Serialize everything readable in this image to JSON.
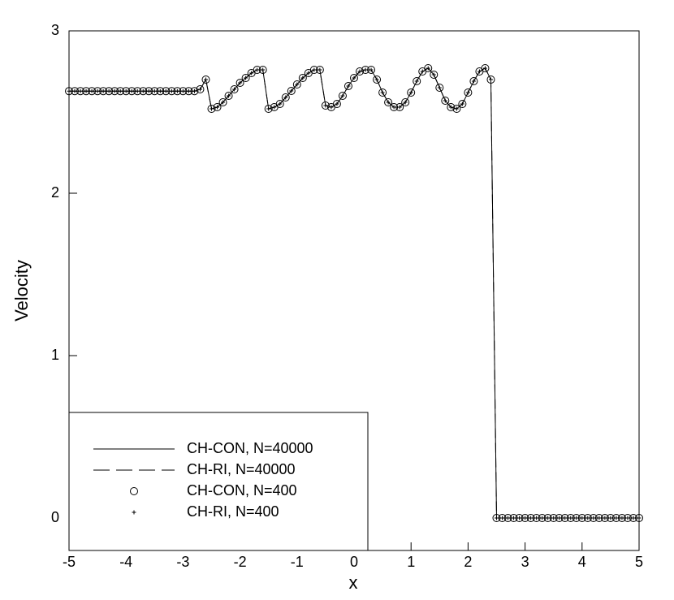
{
  "chart_data": {
    "type": "line",
    "xlabel": "x",
    "ylabel": "Velocity",
    "xlim": [
      -5,
      5
    ],
    "ylim": [
      -0.2,
      3
    ],
    "xticks": [
      -5,
      -4,
      -3,
      -2,
      -1,
      0,
      1,
      2,
      3,
      4,
      5
    ],
    "yticks": [
      0,
      1,
      2,
      3
    ],
    "legend": "lower left",
    "x": [
      -5,
      -4.9,
      -4.8,
      -4.7,
      -4.6,
      -4.5,
      -4.4,
      -4.3,
      -4.2,
      -4.1,
      -4,
      -3.9,
      -3.8,
      -3.7,
      -3.6,
      -3.5,
      -3.4,
      -3.3,
      -3.2,
      -3.1,
      -3,
      -2.9,
      -2.8,
      -2.7,
      -2.6,
      -2.5,
      -2.4,
      -2.3,
      -2.2,
      -2.1,
      -2,
      -1.9,
      -1.8,
      -1.7,
      -1.6,
      -1.5,
      -1.4,
      -1.3,
      -1.2,
      -1.1,
      -1,
      -0.9,
      -0.8,
      -0.7,
      -0.6,
      -0.5,
      -0.4,
      -0.3,
      -0.2,
      -0.1,
      0,
      0.1,
      0.2,
      0.3,
      0.4,
      0.5,
      0.6,
      0.7,
      0.8,
      0.9,
      1,
      1.1,
      1.2,
      1.3,
      1.4,
      1.5,
      1.6,
      1.7,
      1.8,
      1.9,
      2,
      2.1,
      2.2,
      2.3,
      2.4,
      2.5,
      2.6,
      2.7,
      2.8,
      2.9,
      3,
      3.1,
      3.2,
      3.3,
      3.4,
      3.5,
      3.6,
      3.7,
      3.8,
      3.9,
      4,
      4.1,
      4.2,
      4.3,
      4.4,
      4.5,
      4.6,
      4.7,
      4.8,
      4.9,
      5
    ],
    "series": [
      {
        "name": "CH-CON, N=40000",
        "color": "#000000",
        "style": "solid",
        "values": [
          2.629,
          2.629,
          2.629,
          2.629,
          2.629,
          2.629,
          2.629,
          2.629,
          2.629,
          2.629,
          2.629,
          2.629,
          2.629,
          2.629,
          2.629,
          2.629,
          2.629,
          2.629,
          2.629,
          2.629,
          2.629,
          2.629,
          2.629,
          2.64,
          2.7,
          2.52,
          2.53,
          2.56,
          2.6,
          2.64,
          2.68,
          2.71,
          2.74,
          2.76,
          2.76,
          2.52,
          2.53,
          2.55,
          2.59,
          2.63,
          2.67,
          2.71,
          2.74,
          2.76,
          2.76,
          2.54,
          2.53,
          2.55,
          2.6,
          2.66,
          2.71,
          2.75,
          2.76,
          2.76,
          2.7,
          2.62,
          2.56,
          2.53,
          2.53,
          2.56,
          2.62,
          2.69,
          2.75,
          2.77,
          2.73,
          2.65,
          2.57,
          2.53,
          2.52,
          2.55,
          2.62,
          2.69,
          2.75,
          2.77,
          2.7,
          0,
          0,
          0,
          0,
          0,
          0,
          0,
          0,
          0,
          0,
          0,
          0,
          0,
          0,
          0,
          0,
          0,
          0,
          0,
          0,
          0,
          0,
          0,
          0,
          0,
          0
        ]
      },
      {
        "name": "CH-RI, N=40000",
        "color": "#000000",
        "style": "dashed",
        "values": [
          2.629,
          2.629,
          2.629,
          2.629,
          2.629,
          2.629,
          2.629,
          2.629,
          2.629,
          2.629,
          2.629,
          2.629,
          2.629,
          2.629,
          2.629,
          2.629,
          2.629,
          2.629,
          2.629,
          2.629,
          2.629,
          2.629,
          2.629,
          2.64,
          2.7,
          2.52,
          2.53,
          2.56,
          2.6,
          2.64,
          2.68,
          2.71,
          2.74,
          2.76,
          2.76,
          2.52,
          2.53,
          2.55,
          2.59,
          2.63,
          2.67,
          2.71,
          2.74,
          2.76,
          2.76,
          2.54,
          2.53,
          2.55,
          2.6,
          2.66,
          2.71,
          2.75,
          2.76,
          2.76,
          2.7,
          2.62,
          2.56,
          2.53,
          2.53,
          2.56,
          2.62,
          2.69,
          2.75,
          2.77,
          2.73,
          2.65,
          2.57,
          2.53,
          2.52,
          2.55,
          2.62,
          2.69,
          2.75,
          2.77,
          2.7,
          0,
          0,
          0,
          0,
          0,
          0,
          0,
          0,
          0,
          0,
          0,
          0,
          0,
          0,
          0,
          0,
          0,
          0,
          0,
          0,
          0,
          0,
          0,
          0,
          0,
          0
        ]
      },
      {
        "name": "CH-CON, N=400",
        "color": "#000000",
        "style": "circle",
        "values": [
          2.629,
          2.629,
          2.629,
          2.629,
          2.629,
          2.629,
          2.629,
          2.629,
          2.629,
          2.629,
          2.629,
          2.629,
          2.629,
          2.629,
          2.629,
          2.629,
          2.629,
          2.629,
          2.629,
          2.629,
          2.629,
          2.629,
          2.629,
          2.64,
          2.7,
          2.52,
          2.53,
          2.56,
          2.6,
          2.64,
          2.68,
          2.71,
          2.74,
          2.76,
          2.76,
          2.52,
          2.53,
          2.55,
          2.59,
          2.63,
          2.67,
          2.71,
          2.74,
          2.76,
          2.76,
          2.54,
          2.53,
          2.55,
          2.6,
          2.66,
          2.71,
          2.75,
          2.76,
          2.76,
          2.7,
          2.62,
          2.56,
          2.53,
          2.53,
          2.56,
          2.62,
          2.69,
          2.75,
          2.77,
          2.73,
          2.65,
          2.57,
          2.53,
          2.52,
          2.55,
          2.62,
          2.69,
          2.75,
          2.77,
          2.7,
          0,
          0,
          0,
          0,
          0,
          0,
          0,
          0,
          0,
          0,
          0,
          0,
          0,
          0,
          0,
          0,
          0,
          0,
          0,
          0,
          0,
          0,
          0,
          0,
          0,
          0
        ]
      },
      {
        "name": "CH-RI, N=400",
        "color": "#000000",
        "style": "plus",
        "values": [
          2.629,
          2.629,
          2.629,
          2.629,
          2.629,
          2.629,
          2.629,
          2.629,
          2.629,
          2.629,
          2.629,
          2.629,
          2.629,
          2.629,
          2.629,
          2.629,
          2.629,
          2.629,
          2.629,
          2.629,
          2.629,
          2.629,
          2.629,
          2.64,
          2.7,
          2.52,
          2.53,
          2.56,
          2.6,
          2.64,
          2.68,
          2.71,
          2.74,
          2.76,
          2.76,
          2.52,
          2.53,
          2.55,
          2.59,
          2.63,
          2.67,
          2.71,
          2.74,
          2.76,
          2.76,
          2.54,
          2.53,
          2.55,
          2.6,
          2.66,
          2.71,
          2.75,
          2.76,
          2.76,
          2.7,
          2.62,
          2.56,
          2.53,
          2.53,
          2.56,
          2.62,
          2.69,
          2.75,
          2.77,
          2.73,
          2.65,
          2.57,
          2.53,
          2.52,
          2.55,
          2.62,
          2.69,
          2.75,
          2.77,
          2.7,
          0,
          0,
          0,
          0,
          0,
          0,
          0,
          0,
          0,
          0,
          0,
          0,
          0,
          0,
          0,
          0,
          0,
          0,
          0,
          0,
          0,
          0,
          0,
          0,
          0,
          0
        ]
      }
    ]
  }
}
